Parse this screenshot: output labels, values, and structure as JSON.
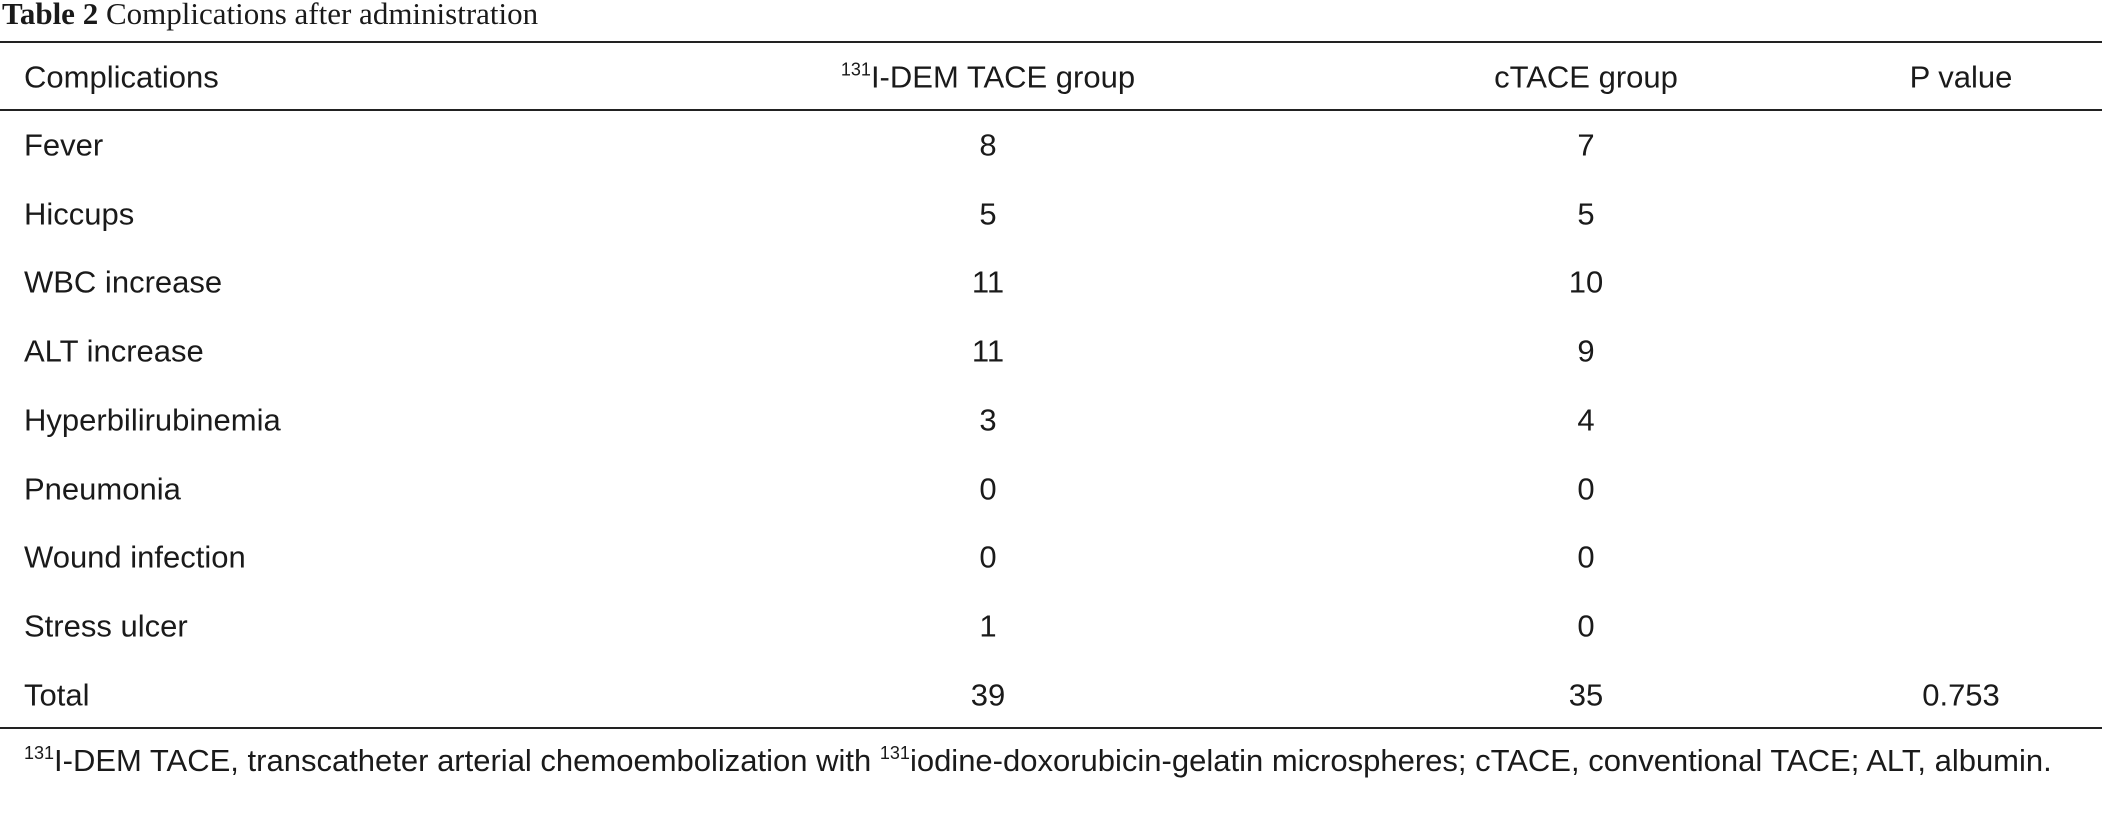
{
  "title": {
    "label": "Table 2",
    "text": "Complications after administration"
  },
  "table": {
    "header": [
      "Complications",
      {
        "sup": "131",
        "text": "I-DEM TACE group"
      },
      "cTACE group",
      "P value"
    ],
    "rows": [
      [
        "Fever",
        8,
        7
      ],
      [
        "Hiccups",
        5,
        5
      ],
      [
        "WBC increase",
        11,
        10
      ],
      [
        "ALT increase",
        11,
        9
      ],
      [
        "Hyperbilirubinemia",
        3,
        4
      ],
      [
        "Pneumonia",
        0,
        0
      ],
      [
        "Wound infection",
        0,
        0
      ],
      [
        "Stress ulcer",
        1,
        0
      ],
      [
        "Total",
        39,
        35,
        0.753
      ]
    ]
  },
  "footnote": [
    {
      "sup": "131"
    },
    {
      "text": "I-DEM TACE, transcatheter arterial chemoembolization with "
    },
    {
      "sup": "131"
    },
    {
      "text": "iodine-doxorubicin-gelatin microspheres; cTACE, conventional TACE; ALT, albumin."
    }
  ]
}
